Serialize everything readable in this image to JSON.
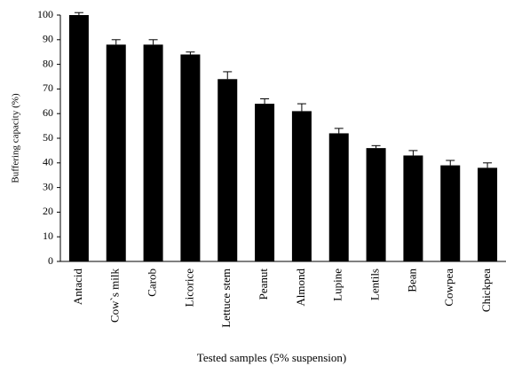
{
  "chart_data": {
    "type": "bar",
    "x_label": "Tested samples (5% suspension)",
    "y_label": "Buffering capacity (%)",
    "categories": [
      "Antacid",
      "Cow`s milk",
      "Carob",
      "Licorice",
      "Lettuce stem",
      "Peanut",
      "Almond",
      "Lupine",
      "Lentils",
      "Bean",
      "Cowpea",
      "Chickpea"
    ],
    "values": [
      100,
      88,
      88,
      84,
      74,
      64,
      61,
      52,
      46,
      43,
      39,
      38
    ],
    "errors": [
      1,
      2,
      2,
      1,
      3,
      2,
      3,
      2,
      1,
      2,
      2,
      2
    ],
    "color": "#000000",
    "ylim": [
      0,
      100
    ],
    "yticks": [
      0,
      10,
      20,
      30,
      40,
      50,
      60,
      70,
      80,
      90,
      100
    ],
    "grid": false
  }
}
